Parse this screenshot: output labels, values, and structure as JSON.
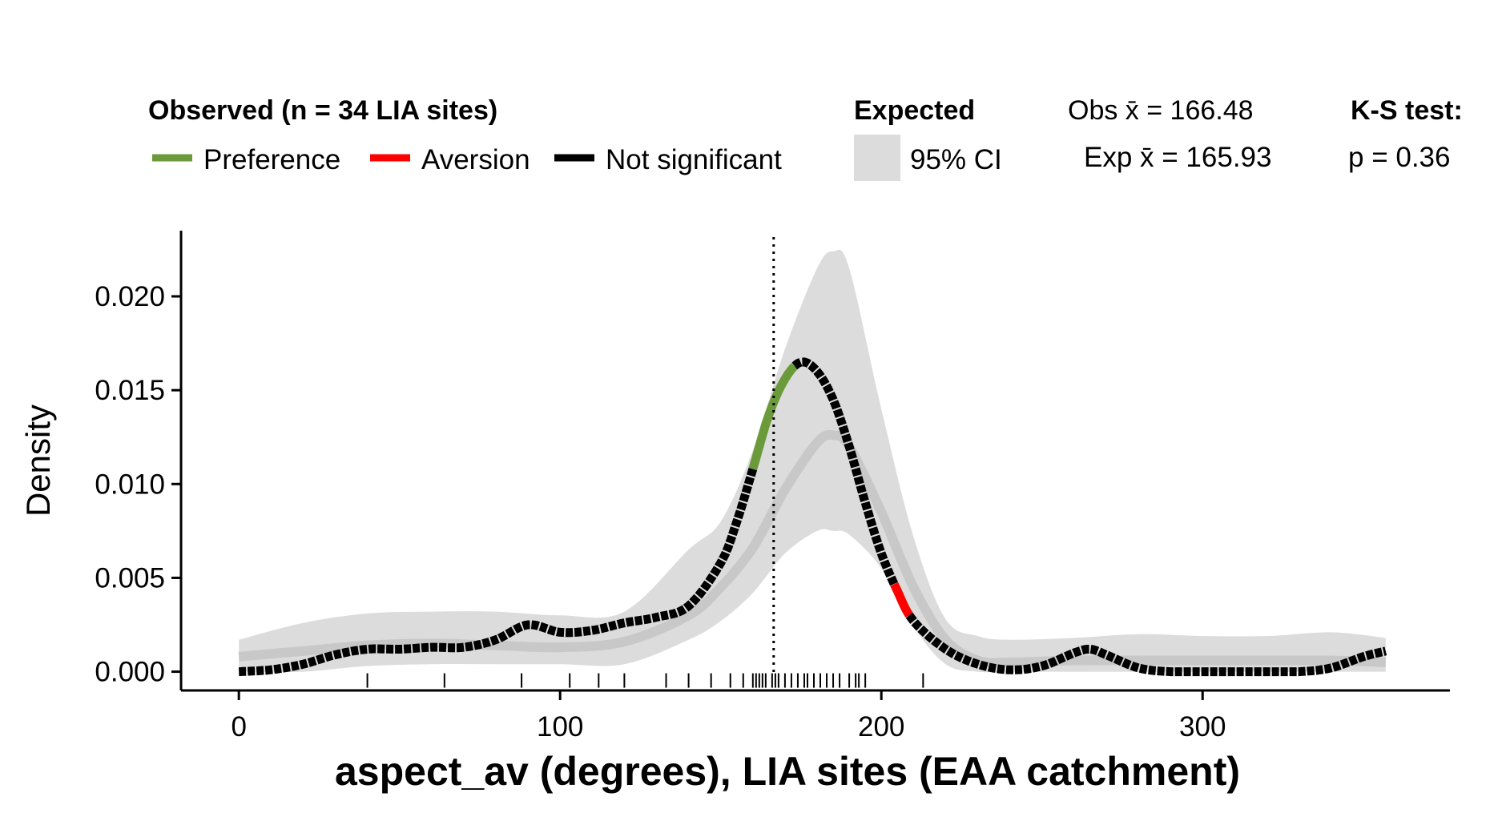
{
  "chart_data": {
    "type": "line",
    "xlabel": "aspect_av (degrees), LIA sites (EAA catchment)",
    "ylabel": "Density",
    "xlim": [
      -18,
      377
    ],
    "ylim": [
      -0.001,
      0.0235
    ],
    "x_ticks": [
      0,
      100,
      200,
      300
    ],
    "x_tick_labels": [
      "0",
      "100",
      "200",
      "300"
    ],
    "y_ticks": [
      0,
      0.005,
      0.01,
      0.015,
      0.02
    ],
    "y_tick_labels": [
      "0.000",
      "0.005",
      "0.010",
      "0.015",
      "0.020"
    ],
    "grid": false,
    "legend_position": "top",
    "legend": {
      "observed_title": "Observed (n = 34 LIA sites)",
      "observed_items": [
        {
          "label": "Preference",
          "color": "#6a9a3a"
        },
        {
          "label": "Aversion",
          "color": "#ff0000"
        },
        {
          "label": "Not significant",
          "color": "#000000"
        }
      ],
      "expected_title": "Expected",
      "expected_item": {
        "label": "95% CI",
        "color": "#dcdcdc"
      }
    },
    "stats": {
      "obs_mean_label": "Obs x̄ = 166.48",
      "exp_mean_label": "Exp x̄ = 165.93",
      "test_title": "K-S test:",
      "test_p_label": "p = 0.36"
    },
    "obs_mean": 166.48,
    "exp_mean": 165.93,
    "colors": {
      "preference": "#6a9a3a",
      "aversion": "#ff0000",
      "not_significant": "#000000",
      "ci_band": "#dcdcdc",
      "expected_line": "#c8c8c8"
    },
    "observed": {
      "x": [
        0,
        10,
        20,
        30,
        40,
        50,
        60,
        70,
        80,
        90,
        100,
        110,
        120,
        130,
        140,
        150,
        155,
        160,
        165,
        170,
        175,
        180,
        185,
        190,
        195,
        200,
        205,
        210,
        220,
        230,
        240,
        250,
        260,
        265,
        270,
        280,
        290,
        300,
        310,
        320,
        330,
        340,
        350,
        357
      ],
      "y": [
        0.0,
        0.0001,
        0.0004,
        0.0009,
        0.0012,
        0.0012,
        0.0013,
        0.0013,
        0.0017,
        0.0025,
        0.0021,
        0.0022,
        0.0026,
        0.0029,
        0.0035,
        0.0058,
        0.008,
        0.0108,
        0.0137,
        0.0156,
        0.0165,
        0.016,
        0.0145,
        0.012,
        0.009,
        0.0063,
        0.0043,
        0.0027,
        0.0012,
        0.0004,
        0.0001,
        0.0003,
        0.001,
        0.0012,
        0.0009,
        0.0002,
        0.0,
        0.0,
        0.0,
        0.0,
        0.0,
        0.0002,
        0.0008,
        0.0011
      ],
      "segments": [
        {
          "status": "not_significant",
          "x_from": 0,
          "x_to": 160
        },
        {
          "status": "preference",
          "x_from": 160,
          "x_to": 173
        },
        {
          "status": "not_significant",
          "x_from": 173,
          "x_to": 204
        },
        {
          "status": "aversion",
          "x_from": 204,
          "x_to": 209
        },
        {
          "status": "not_significant",
          "x_from": 209,
          "x_to": 357
        }
      ]
    },
    "expected": {
      "x": [
        0,
        20,
        40,
        60,
        80,
        100,
        120,
        140,
        150,
        160,
        170,
        180,
        185,
        190,
        200,
        210,
        220,
        230,
        240,
        260,
        280,
        300,
        320,
        340,
        357
      ],
      "y": [
        0.0008,
        0.0011,
        0.0014,
        0.0015,
        0.0014,
        0.0013,
        0.0016,
        0.003,
        0.0045,
        0.0066,
        0.0097,
        0.0122,
        0.0126,
        0.012,
        0.0085,
        0.0045,
        0.0017,
        0.0006,
        0.0005,
        0.0006,
        0.0006,
        0.0006,
        0.0006,
        0.0006,
        0.0005
      ],
      "ci_lower": [
        0.0,
        0.0,
        0.0003,
        0.0004,
        0.0004,
        0.0004,
        0.0004,
        0.0017,
        0.0027,
        0.0042,
        0.0063,
        0.0075,
        0.0075,
        0.0073,
        0.0055,
        0.0024,
        0.0004,
        0.0,
        0.0,
        0.0,
        0.0,
        0.0,
        0.0,
        0.0,
        0.0
      ],
      "ci_upper": [
        0.0017,
        0.0026,
        0.0031,
        0.0032,
        0.0032,
        0.003,
        0.0032,
        0.0065,
        0.008,
        0.0118,
        0.0172,
        0.0215,
        0.0224,
        0.0215,
        0.014,
        0.0072,
        0.0028,
        0.0019,
        0.0017,
        0.0018,
        0.002,
        0.0019,
        0.0019,
        0.0021,
        0.0018
      ]
    },
    "rug_sites": [
      40,
      64,
      88,
      103,
      112,
      120,
      133,
      140,
      147,
      153,
      157,
      160,
      161,
      162,
      163,
      164,
      166,
      167,
      168,
      170,
      172,
      174,
      176,
      177,
      179,
      181,
      183,
      185,
      187,
      190,
      192,
      193,
      195,
      213
    ]
  }
}
